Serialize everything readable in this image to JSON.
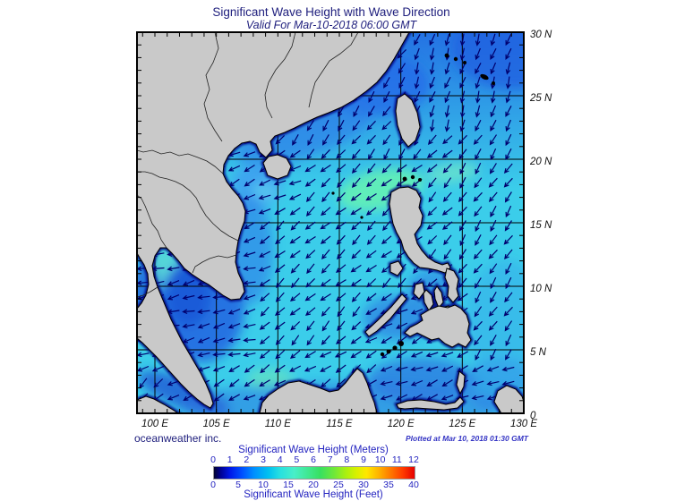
{
  "title": "Significant Wave Height with Wave Direction",
  "subtitle": "Valid For Mar-10-2018 06:00 GMT",
  "credit": "oceanweather inc.",
  "plotted_note": "Plotted at Mar 10, 2018 01:30 GMT",
  "map": {
    "lat_labels": [
      "30 N",
      "25 N",
      "20 N",
      "15 N",
      "10 N",
      "5 N",
      "0"
    ],
    "lon_labels": [
      "100 E",
      "105 E",
      "110 E",
      "115 E",
      "120 E",
      "125 E",
      "130 E"
    ]
  },
  "colorbar": {
    "meters_title": "Significant Wave Height (Meters)",
    "feet_title": "Significant Wave Height (Feet)",
    "meters_ticks": [
      "0",
      "1",
      "2",
      "3",
      "4",
      "5",
      "6",
      "7",
      "8",
      "9",
      "10",
      "11",
      "12"
    ],
    "feet_ticks": [
      "0",
      "5",
      "10",
      "15",
      "20",
      "25",
      "30",
      "35",
      "40"
    ],
    "gradient": [
      [
        "0%",
        "#05052E"
      ],
      [
        "3%",
        "#00008C"
      ],
      [
        "8%",
        "#0018E8"
      ],
      [
        "14%",
        "#0050FF"
      ],
      [
        "20%",
        "#0090FF"
      ],
      [
        "27%",
        "#00C0F0"
      ],
      [
        "33%",
        "#28E0E0"
      ],
      [
        "40%",
        "#48EFC8"
      ],
      [
        "47%",
        "#40E890"
      ],
      [
        "53%",
        "#38E060"
      ],
      [
        "60%",
        "#70E838"
      ],
      [
        "66%",
        "#ACF010"
      ],
      [
        "71%",
        "#D8F000"
      ],
      [
        "76%",
        "#FFE800"
      ],
      [
        "82%",
        "#FFB400"
      ],
      [
        "88%",
        "#FF7800"
      ],
      [
        "94%",
        "#FF3C00"
      ],
      [
        "100%",
        "#E60000"
      ]
    ]
  },
  "colors": {
    "title_ink": "#20207E",
    "label_ink": "#2424C0",
    "plotted_ink": "#3434C4",
    "land": "#C9C9C9",
    "coast_fringe": "#000080",
    "sea_base": "#3BCDEA",
    "arrow": "#00006E"
  }
}
